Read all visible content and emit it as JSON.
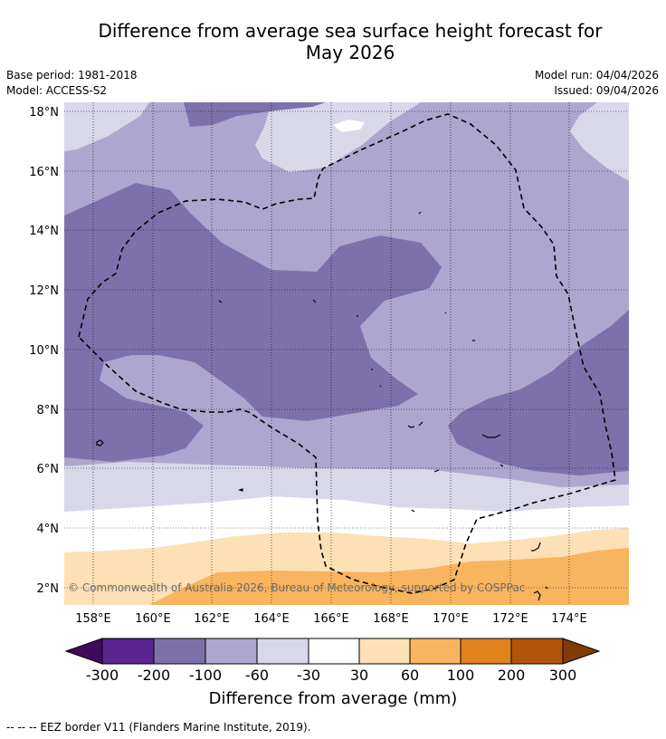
{
  "header": {
    "title_line1": "Difference from average sea surface height forecast for",
    "title_line2": "May 2026",
    "base_period": "Base period: 1981-2018",
    "model": "Model: ACCESS-S2",
    "model_run": "Model run: 04/04/2026",
    "issued": "Issued: 09/04/2026"
  },
  "map": {
    "lon_ticks": [
      "158°E",
      "160°E",
      "162°E",
      "164°E",
      "166°E",
      "168°E",
      "170°E",
      "172°E",
      "174°E"
    ],
    "lat_ticks": [
      "18°N",
      "16°N",
      "14°N",
      "12°N",
      "10°N",
      "8°N",
      "6°N",
      "4°N",
      "2°N"
    ],
    "copyright": "© Commonwealth of Australia 2026, Bureau of Meteorology, supported by COSPPac"
  },
  "colorbar": {
    "title": "Difference from average (mm)",
    "tick_labels": [
      "-300",
      "-200",
      "-100",
      "-60",
      "-30",
      "30",
      "60",
      "100",
      "200",
      "300"
    ],
    "colors": [
      "#3f0a5c",
      "#5b258f",
      "#7e71ab",
      "#ada7cf",
      "#d8d8ea",
      "#ffffff",
      "#fde0b5",
      "#f9b45f",
      "#e2821a",
      "#b25507",
      "#7f3b08"
    ]
  },
  "footnote": "--  --  -- EEZ border V11 (Flanders Marine Institute, 2019)."
}
